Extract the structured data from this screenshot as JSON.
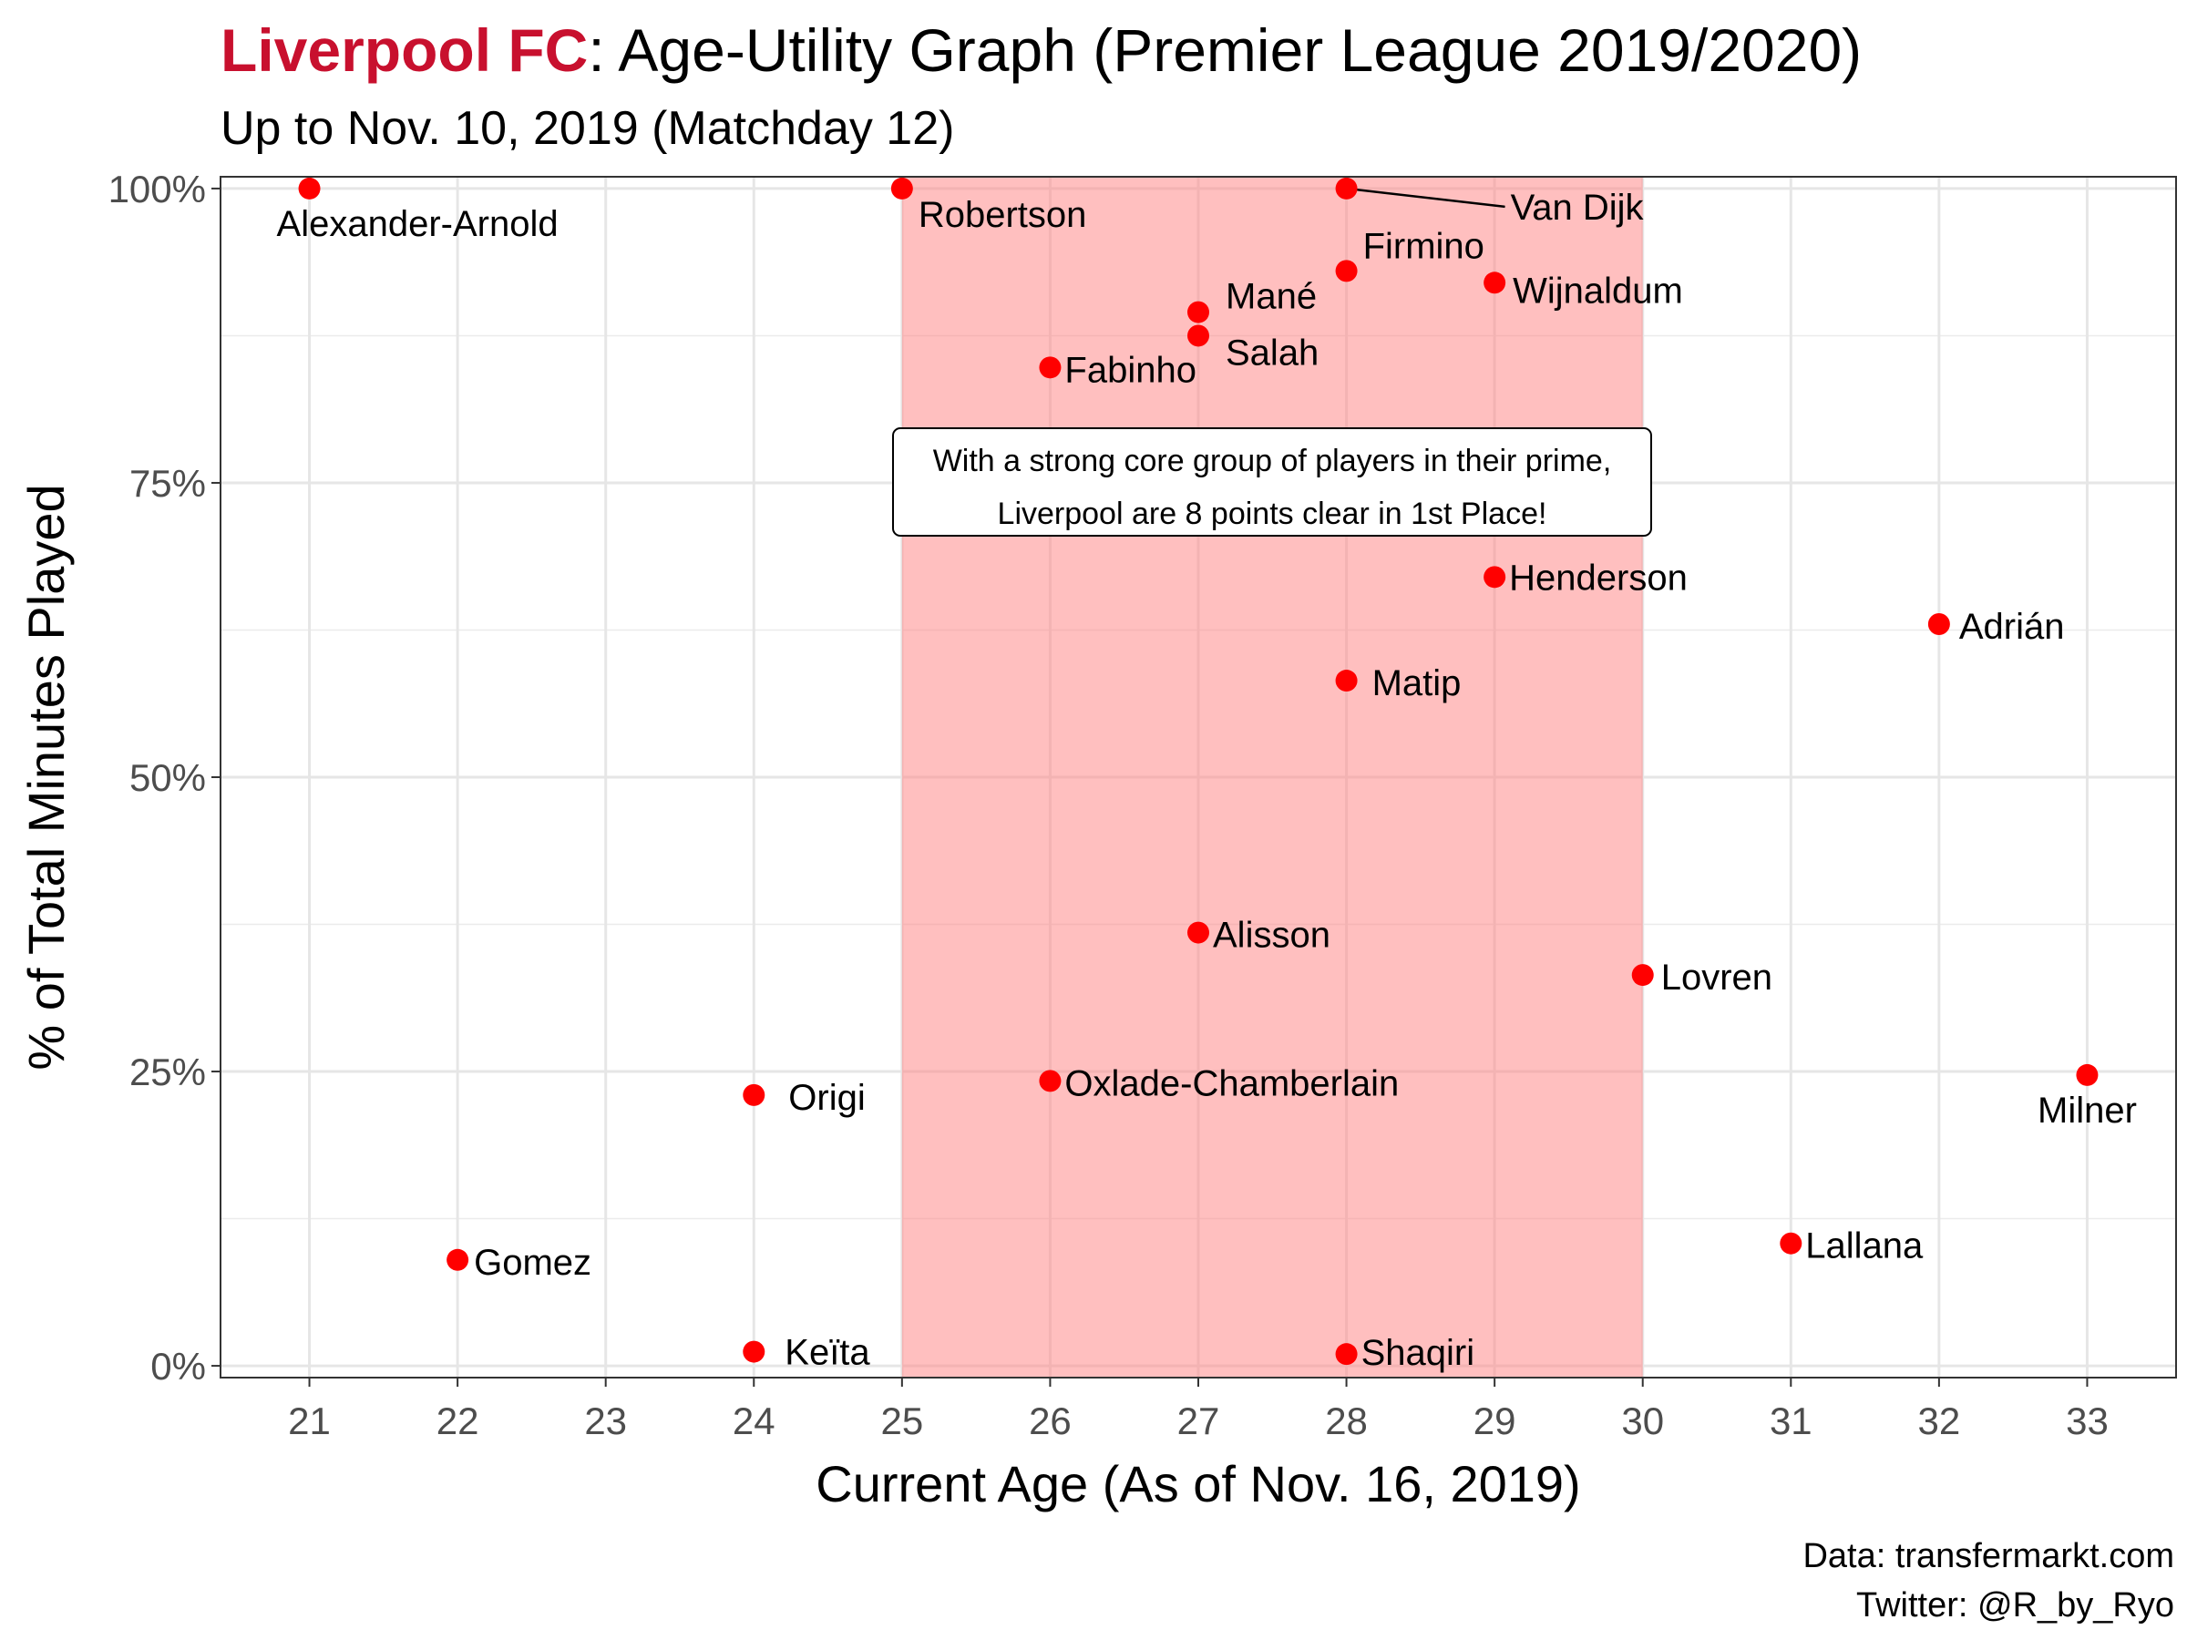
{
  "title": {
    "team": "Liverpool FC",
    "rest": ": Age-Utility Graph (Premier League 2019/2020)"
  },
  "subtitle": "Up to Nov. 10, 2019 (Matchday 12)",
  "caption": [
    "Data: transfermarkt.com",
    "Twitter: @R_by_Ryo"
  ],
  "annotation": {
    "lines": [
      "With a strong core group of players in their prime,",
      "Liverpool are 8 points clear in 1st Place!"
    ]
  },
  "colors": {
    "point": "#ff0000",
    "prime_band": "#ff7f7f",
    "team_title": "#c8102e"
  },
  "chart_data": {
    "type": "scatter",
    "xlabel": "Current Age (As of Nov. 16, 2019)",
    "ylabel": "% of Total Minutes Played",
    "xlim": [
      20.4,
      33.6
    ],
    "ylim": [
      -0.01,
      1.01
    ],
    "xticks": [
      21,
      22,
      23,
      24,
      25,
      26,
      27,
      28,
      29,
      30,
      31,
      32,
      33
    ],
    "xtick_labels": [
      "21",
      "22",
      "23",
      "24",
      "25",
      "26",
      "27",
      "28",
      "29",
      "30",
      "31",
      "32",
      "33"
    ],
    "yticks": [
      0,
      0.25,
      0.5,
      0.75,
      1.0
    ],
    "ytick_labels": [
      "0%",
      "25%",
      "50%",
      "75%",
      "100%"
    ],
    "grid": true,
    "highlight_band": [
      25,
      30
    ],
    "points": [
      {
        "label": "Alexander-Arnold",
        "x": 21,
        "y": 1.0
      },
      {
        "label": "Robertson",
        "x": 25,
        "y": 1.0
      },
      {
        "label": "Van Dijk",
        "x": 28,
        "y": 1.0
      },
      {
        "label": "Firmino",
        "x": 28,
        "y": 0.93
      },
      {
        "label": "Wijnaldum",
        "x": 29,
        "y": 0.92
      },
      {
        "label": "Mané",
        "x": 27,
        "y": 0.895
      },
      {
        "label": "Salah",
        "x": 27,
        "y": 0.875
      },
      {
        "label": "Fabinho",
        "x": 26,
        "y": 0.848
      },
      {
        "label": "Henderson",
        "x": 29,
        "y": 0.67
      },
      {
        "label": "Adrián",
        "x": 32,
        "y": 0.63
      },
      {
        "label": "Matip",
        "x": 28,
        "y": 0.582
      },
      {
        "label": "Alisson",
        "x": 27,
        "y": 0.368
      },
      {
        "label": "Lovren",
        "x": 30,
        "y": 0.332
      },
      {
        "label": "Oxlade-Chamberlain",
        "x": 26,
        "y": 0.242
      },
      {
        "label": "Origi",
        "x": 24,
        "y": 0.23
      },
      {
        "label": "Milner",
        "x": 33,
        "y": 0.247
      },
      {
        "label": "Lallana",
        "x": 31,
        "y": 0.104
      },
      {
        "label": "Gomez",
        "x": 22,
        "y": 0.09
      },
      {
        "label": "Keïta",
        "x": 24,
        "y": 0.012
      },
      {
        "label": "Shaqiri",
        "x": 28,
        "y": 0.01
      }
    ]
  }
}
